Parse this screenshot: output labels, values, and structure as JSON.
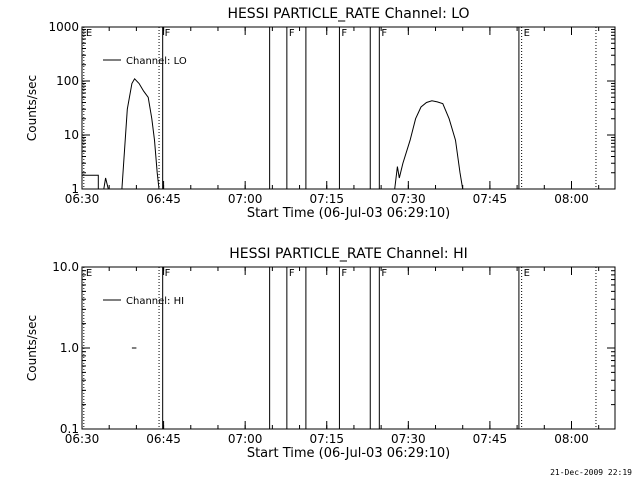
{
  "footer_timestamp": "21-Dec-2009 22:19",
  "chart_data": [
    {
      "type": "line",
      "title": "HESSI PARTICLE_RATE Channel: LO",
      "xlabel": "Start Time (06-Jul-03 06:29:10)",
      "ylabel": "Counts/sec",
      "yscale": "log",
      "xlim": [
        "06:30",
        "08:08"
      ],
      "ylim": [
        1,
        1000
      ],
      "xticks": [
        "06:30",
        "06:45",
        "07:00",
        "07:15",
        "07:30",
        "07:45",
        "08:00"
      ],
      "yticks": [
        {
          "v": 1,
          "label": "1"
        },
        {
          "v": 10,
          "label": "10"
        },
        {
          "v": 100,
          "label": "100"
        },
        {
          "v": 1000,
          "label": "1000"
        }
      ],
      "legend": {
        "label": "Channel: LO",
        "placement": "top-left"
      },
      "grid": false,
      "series": [
        {
          "name": "Channel: LO",
          "segments": [
            [
              [
                "06:30:00",
                1.8
              ],
              [
                "06:33:00",
                1.8
              ],
              [
                "06:33:00",
                1.0
              ]
            ],
            [
              [
                "06:34:00",
                1.0
              ],
              [
                "06:34:20",
                1.6
              ],
              [
                "06:34:50",
                1.0
              ]
            ],
            [
              [
                "06:37:20",
                1.0
              ],
              [
                "06:38:20",
                30
              ],
              [
                "06:39:10",
                90
              ],
              [
                "06:39:40",
                110
              ],
              [
                "06:40:30",
                90
              ],
              [
                "06:41:20",
                65
              ],
              [
                "06:42:10",
                50
              ],
              [
                "06:42:50",
                20
              ],
              [
                "06:43:20",
                8
              ],
              [
                "06:43:50",
                2
              ],
              [
                "06:44:10",
                1.0
              ]
            ],
            [
              [
                "07:27:30",
                1.0
              ],
              [
                "07:28:00",
                2.6
              ],
              [
                "07:28:20",
                1.6
              ],
              [
                "07:29:00",
                3
              ],
              [
                "07:30:20",
                8
              ],
              [
                "07:31:20",
                20
              ],
              [
                "07:32:20",
                33
              ],
              [
                "07:33:20",
                40
              ],
              [
                "07:34:20",
                43
              ],
              [
                "07:35:20",
                41
              ],
              [
                "07:36:20",
                38
              ],
              [
                "07:37:30",
                20
              ],
              [
                "07:38:40",
                8
              ],
              [
                "07:39:30",
                2
              ],
              [
                "07:40:00",
                1.0
              ]
            ]
          ]
        }
      ],
      "markers": [
        {
          "time": "06:30:20",
          "style": "dotted",
          "label": "E"
        },
        {
          "time": "06:44:10",
          "style": "dotted",
          "label": ""
        },
        {
          "time": "06:44:50",
          "style": "solid",
          "label": "F"
        },
        {
          "time": "07:04:30",
          "style": "solid",
          "label": ""
        },
        {
          "time": "07:07:40",
          "style": "solid",
          "label": "F"
        },
        {
          "time": "07:11:10",
          "style": "solid",
          "label": ""
        },
        {
          "time": "07:17:20",
          "style": "solid",
          "label": "F"
        },
        {
          "time": "07:23:00",
          "style": "solid",
          "label": ""
        },
        {
          "time": "07:24:40",
          "style": "solid",
          "label": "F"
        },
        {
          "time": "07:50:20",
          "style": "solid",
          "label": ""
        },
        {
          "time": "07:50:50",
          "style": "dotted",
          "label": "E"
        },
        {
          "time": "08:04:30",
          "style": "dotted",
          "label": ""
        }
      ]
    },
    {
      "type": "line",
      "title": "HESSI PARTICLE_RATE Channel: HI",
      "xlabel": "Start Time (06-Jul-03 06:29:10)",
      "ylabel": "Counts/sec",
      "yscale": "log",
      "xlim": [
        "06:30",
        "08:08"
      ],
      "ylim": [
        0.1,
        10
      ],
      "xticks": [
        "06:30",
        "06:45",
        "07:00",
        "07:15",
        "07:30",
        "07:45",
        "08:00"
      ],
      "yticks": [
        {
          "v": 0.1,
          "label": "0.1"
        },
        {
          "v": 1,
          "label": "1.0"
        },
        {
          "v": 10,
          "label": "10.0"
        }
      ],
      "legend": {
        "label": "Channel: HI",
        "placement": "top-left"
      },
      "grid": false,
      "series": [
        {
          "name": "Channel: HI",
          "segments": [
            [
              [
                "06:39:10",
                1.0
              ],
              [
                "06:40:00",
                1.0
              ]
            ]
          ]
        }
      ],
      "markers": [
        {
          "time": "06:30:20",
          "style": "dotted",
          "label": "E"
        },
        {
          "time": "06:44:10",
          "style": "dotted",
          "label": ""
        },
        {
          "time": "06:44:50",
          "style": "solid",
          "label": "F"
        },
        {
          "time": "07:04:30",
          "style": "solid",
          "label": ""
        },
        {
          "time": "07:07:40",
          "style": "solid",
          "label": "F"
        },
        {
          "time": "07:11:10",
          "style": "solid",
          "label": ""
        },
        {
          "time": "07:17:20",
          "style": "solid",
          "label": "F"
        },
        {
          "time": "07:23:00",
          "style": "solid",
          "label": ""
        },
        {
          "time": "07:24:40",
          "style": "solid",
          "label": "F"
        },
        {
          "time": "07:50:20",
          "style": "solid",
          "label": ""
        },
        {
          "time": "07:50:50",
          "style": "dotted",
          "label": "E"
        },
        {
          "time": "08:04:30",
          "style": "dotted",
          "label": ""
        }
      ]
    }
  ]
}
